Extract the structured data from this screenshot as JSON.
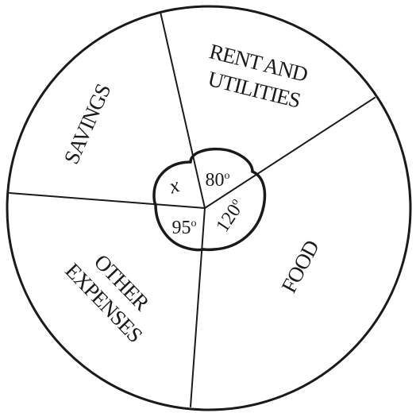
{
  "diagram": {
    "sectors": [
      {
        "id": "rent",
        "label_lines": [
          "RENT AND",
          "UTILITIES"
        ],
        "angle_label": "80",
        "unit": "o"
      },
      {
        "id": "food",
        "label_lines": [
          "FOOD"
        ],
        "angle_label": "120",
        "unit": "o"
      },
      {
        "id": "other",
        "label_lines": [
          "OTHER",
          "EXPENSES"
        ],
        "angle_label": "95",
        "unit": "o"
      },
      {
        "id": "savings",
        "label_lines": [
          "SAVINGS"
        ],
        "angle_label": "x",
        "unit": ""
      }
    ]
  }
}
